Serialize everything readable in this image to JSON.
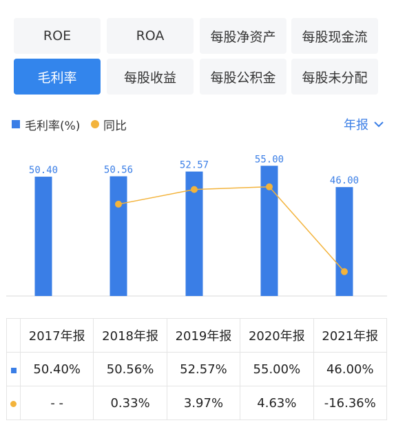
{
  "tabs": [
    {
      "label": "ROE",
      "active": false
    },
    {
      "label": "ROA",
      "active": false
    },
    {
      "label": "每股净资产",
      "active": false
    },
    {
      "label": "每股现金流",
      "active": false
    },
    {
      "label": "毛利率",
      "active": true
    },
    {
      "label": "每股收益",
      "active": false
    },
    {
      "label": "每股公积金",
      "active": false
    },
    {
      "label": "每股未分配",
      "active": false
    }
  ],
  "legend": {
    "bar_label": "毛利率(%)",
    "line_label": "同比",
    "period_label": "年报"
  },
  "colors": {
    "bar": "#3a7ee6",
    "line": "#f3b33b",
    "accent": "#3385ec",
    "positive": "#e0474b",
    "negative": "#1ba35a"
  },
  "chart_data": {
    "type": "bar",
    "categories": [
      "2017年报",
      "2018年报",
      "2019年报",
      "2020年报",
      "2021年报"
    ],
    "series": [
      {
        "name": "毛利率(%)",
        "type": "bar",
        "values": [
          50.4,
          50.56,
          52.57,
          55.0,
          46.0
        ],
        "labels": [
          "50.40",
          "50.56",
          "52.57",
          "55.00",
          "46.00"
        ]
      },
      {
        "name": "同比",
        "type": "line",
        "values": [
          null,
          0.33,
          3.97,
          4.63,
          -16.36
        ]
      }
    ]
  },
  "table": {
    "headers": [
      "2017年报",
      "2018年报",
      "2019年报",
      "2020年报",
      "2021年报"
    ],
    "rows": [
      {
        "marker": "bar",
        "cells": [
          "50.40%",
          "50.56%",
          "52.57%",
          "55.00%",
          "46.00%"
        ]
      },
      {
        "marker": "line",
        "cells": [
          "- -",
          "0.33%",
          "3.97%",
          "4.63%",
          "-16.36%"
        ]
      }
    ]
  }
}
